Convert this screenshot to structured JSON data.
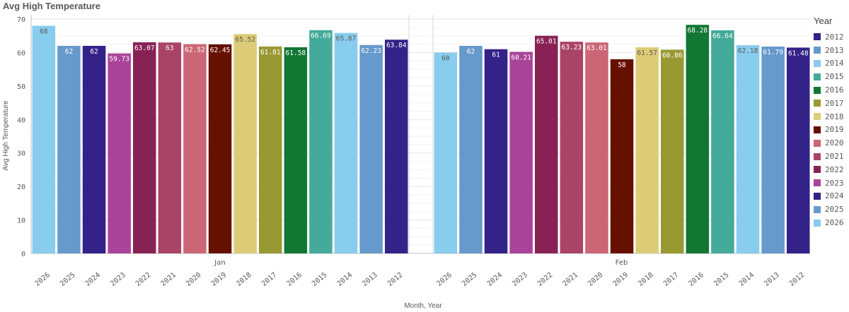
{
  "chart_data": {
    "type": "bar",
    "title": "Avg High Temperature",
    "xlabel": "Month, Year",
    "ylabel": "Avg High Temperature",
    "ylim": [
      0,
      70
    ],
    "yticks": [
      0,
      10,
      20,
      30,
      40,
      50,
      60,
      70
    ],
    "grid": true,
    "legend_title": "Year",
    "legend_position": "right",
    "groups": [
      {
        "label": "Jan",
        "bars": [
          {
            "year": "2026",
            "value": 68
          },
          {
            "year": "2025",
            "value": 62
          },
          {
            "year": "2024",
            "value": 62
          },
          {
            "year": "2023",
            "value": 59.73
          },
          {
            "year": "2022",
            "value": 63.07
          },
          {
            "year": "2021",
            "value": 63
          },
          {
            "year": "2020",
            "value": 62.52
          },
          {
            "year": "2019",
            "value": 62.45
          },
          {
            "year": "2018",
            "value": 65.52
          },
          {
            "year": "2017",
            "value": 61.81
          },
          {
            "year": "2016",
            "value": 61.58
          },
          {
            "year": "2015",
            "value": 66.69
          },
          {
            "year": "2014",
            "value": 65.87
          },
          {
            "year": "2013",
            "value": 62.23
          },
          {
            "year": "2012",
            "value": 63.84
          }
        ]
      },
      {
        "label": "Feb",
        "bars": [
          {
            "year": "2026",
            "value": 60
          },
          {
            "year": "2025",
            "value": 62
          },
          {
            "year": "2024",
            "value": 61
          },
          {
            "year": "2023",
            "value": 60.21
          },
          {
            "year": "2022",
            "value": 65.01
          },
          {
            "year": "2021",
            "value": 63.23
          },
          {
            "year": "2020",
            "value": 63.01
          },
          {
            "year": "2019",
            "value": 58
          },
          {
            "year": "2018",
            "value": 61.57
          },
          {
            "year": "2017",
            "value": 60.86
          },
          {
            "year": "2016",
            "value": 68.28
          },
          {
            "year": "2015",
            "value": 66.64
          },
          {
            "year": "2014",
            "value": 62.18
          },
          {
            "year": "2013",
            "value": 61.79
          },
          {
            "year": "2012",
            "value": 61.48
          }
        ]
      }
    ],
    "legend": [
      {
        "year": "2012",
        "color": "#332288"
      },
      {
        "year": "2013",
        "color": "#6699cc"
      },
      {
        "year": "2014",
        "color": "#88ccee"
      },
      {
        "year": "2015",
        "color": "#44aa99"
      },
      {
        "year": "2016",
        "color": "#117733"
      },
      {
        "year": "2017",
        "color": "#999933"
      },
      {
        "year": "2018",
        "color": "#ddcc77"
      },
      {
        "year": "2019",
        "color": "#661100"
      },
      {
        "year": "2020",
        "color": "#cc6677"
      },
      {
        "year": "2021",
        "color": "#aa4466"
      },
      {
        "year": "2022",
        "color": "#882255"
      },
      {
        "year": "2023",
        "color": "#aa4499"
      },
      {
        "year": "2024",
        "color": "#332288"
      },
      {
        "year": "2025",
        "color": "#6699cc"
      },
      {
        "year": "2026",
        "color": "#88ccee"
      }
    ],
    "label_colors": {
      "dark": "#ffffff",
      "light": "#595959"
    }
  }
}
